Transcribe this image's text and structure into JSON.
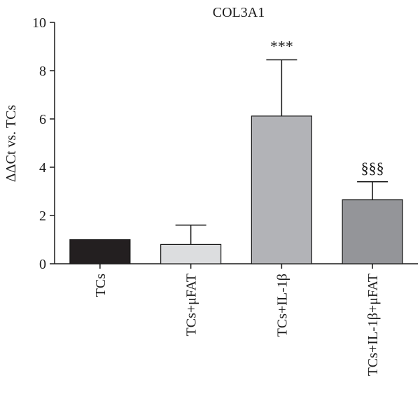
{
  "chart_data": {
    "type": "bar",
    "title": "COL3A1",
    "ylabel": "ΔΔCt vs. TCs",
    "xlabel": "",
    "ylim": [
      0,
      10
    ],
    "yticks": [
      0,
      2,
      4,
      6,
      8,
      10
    ],
    "grid": false,
    "categories": [
      "TCs",
      "TCs+μFAT",
      "TCs+IL-1β",
      "TCs+IL-1β+μFAT"
    ],
    "values": [
      1.0,
      0.8,
      6.12,
      2.65
    ],
    "errors": [
      0,
      0.8,
      2.33,
      0.75
    ],
    "annotations": [
      "",
      "",
      "***",
      "§§§"
    ],
    "colors": [
      "#231f20",
      "#dcdddf",
      "#b2b3b7",
      "#949599"
    ]
  }
}
